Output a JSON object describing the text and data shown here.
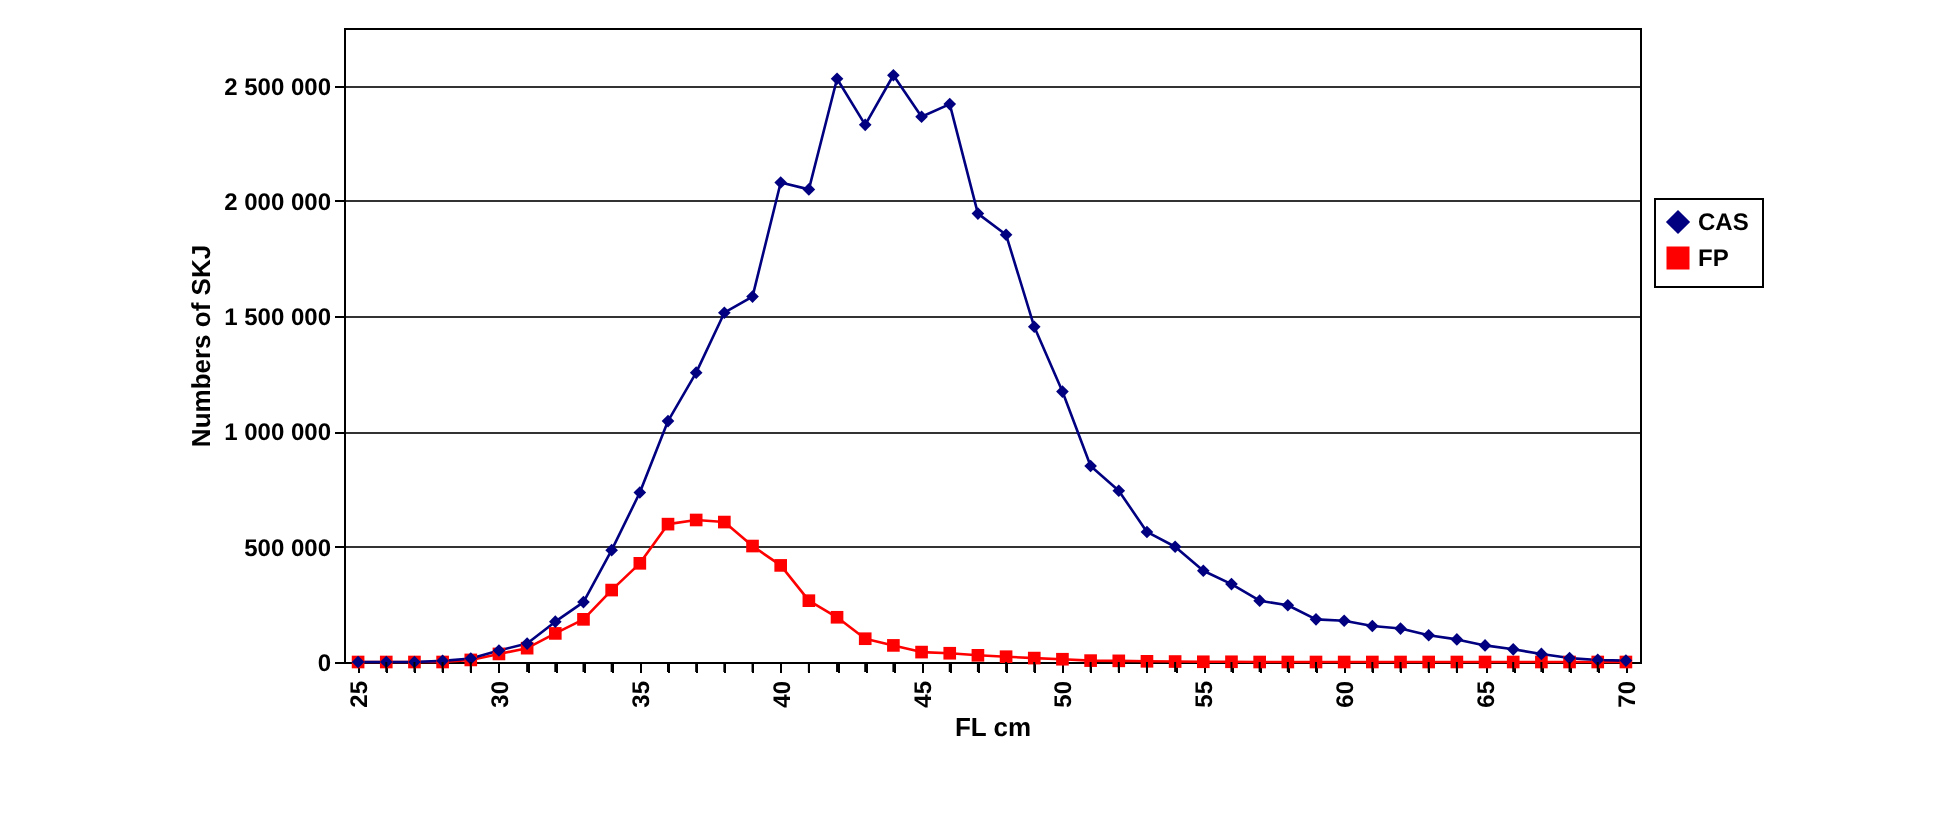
{
  "chart_data": {
    "type": "line",
    "xlabel": "FL cm",
    "ylabel": "Numbers of SKJ",
    "x": [
      25,
      26,
      27,
      28,
      29,
      30,
      31,
      32,
      33,
      34,
      35,
      36,
      37,
      38,
      39,
      40,
      41,
      42,
      43,
      44,
      45,
      46,
      47,
      48,
      49,
      50,
      51,
      52,
      53,
      54,
      55,
      56,
      57,
      58,
      59,
      60,
      61,
      62,
      63,
      64,
      65,
      66,
      67,
      68,
      69,
      70
    ],
    "series": [
      {
        "name": "CAS",
        "color": "#000080",
        "marker": "diamond",
        "values": [
          0,
          0,
          0,
          5000,
          15000,
          50000,
          80000,
          175000,
          260000,
          485000,
          735000,
          1045000,
          1255000,
          1515000,
          1585000,
          2080000,
          2050000,
          2530000,
          2330000,
          2545000,
          2365000,
          2420000,
          1945000,
          1853000,
          1454000,
          1173000,
          850000,
          743000,
          564000,
          500000,
          396000,
          338000,
          266000,
          246000,
          185000,
          179000,
          156000,
          145000,
          116000,
          98000,
          72000,
          55000,
          35000,
          17000,
          9000,
          6000
        ]
      },
      {
        "name": "FP",
        "color": "#ff0000",
        "marker": "square",
        "values": [
          0,
          0,
          0,
          0,
          9000,
          35000,
          60000,
          124000,
          185000,
          312000,
          428000,
          598000,
          616000,
          607000,
          503000,
          419000,
          266000,
          194000,
          101000,
          72000,
          43000,
          38000,
          29000,
          23000,
          17000,
          12000,
          6000,
          5000,
          3000,
          2000,
          1000,
          1000,
          0,
          0,
          0,
          0,
          0,
          0,
          0,
          0,
          0,
          0,
          0,
          0,
          0,
          0
        ]
      }
    ],
    "xlim": [
      24.5,
      70.5
    ],
    "xticks": [
      25,
      {
        "value": 26,
        "label": null
      },
      {
        "value": 27,
        "label": null
      },
      {
        "value": 28,
        "label": null
      },
      {
        "value": 29,
        "label": null
      },
      30,
      {
        "value": 31,
        "label": null
      },
      {
        "value": 32,
        "label": null
      },
      {
        "value": 33,
        "label": null
      },
      {
        "value": 34,
        "label": null
      },
      35,
      {
        "value": 36,
        "label": null
      },
      {
        "value": 37,
        "label": null
      },
      {
        "value": 38,
        "label": null
      },
      {
        "value": 39,
        "label": null
      },
      40,
      {
        "value": 41,
        "label": null
      },
      {
        "value": 42,
        "label": null
      },
      {
        "value": 43,
        "label": null
      },
      {
        "value": 44,
        "label": null
      },
      45,
      {
        "value": 46,
        "label": null
      },
      {
        "value": 47,
        "label": null
      },
      {
        "value": 48,
        "label": null
      },
      {
        "value": 49,
        "label": null
      },
      50,
      {
        "value": 51,
        "label": null
      },
      {
        "value": 52,
        "label": null
      },
      {
        "value": 53,
        "label": null
      },
      {
        "value": 54,
        "label": null
      },
      55,
      {
        "value": 56,
        "label": null
      },
      {
        "value": 57,
        "label": null
      },
      {
        "value": 58,
        "label": null
      },
      {
        "value": 59,
        "label": null
      },
      60,
      {
        "value": 61,
        "label": null
      },
      {
        "value": 62,
        "label": null
      },
      {
        "value": 63,
        "label": null
      },
      {
        "value": 64,
        "label": null
      },
      65,
      {
        "value": 66,
        "label": null
      },
      {
        "value": 67,
        "label": null
      },
      {
        "value": 68,
        "label": null
      },
      {
        "value": 69,
        "label": null
      },
      70
    ],
    "ylim": [
      0,
      2750000
    ],
    "yticks": [
      0,
      {
        "value": 500000,
        "label": "500 000"
      },
      {
        "value": 1000000,
        "label": "1 000 000"
      },
      {
        "value": 1500000,
        "label": "1 500 000"
      },
      {
        "value": 2000000,
        "label": "2 000 000"
      },
      {
        "value": 2500000,
        "label": "2 500 000"
      }
    ],
    "grid": "y",
    "legend": "right",
    "line_style": "solid"
  }
}
